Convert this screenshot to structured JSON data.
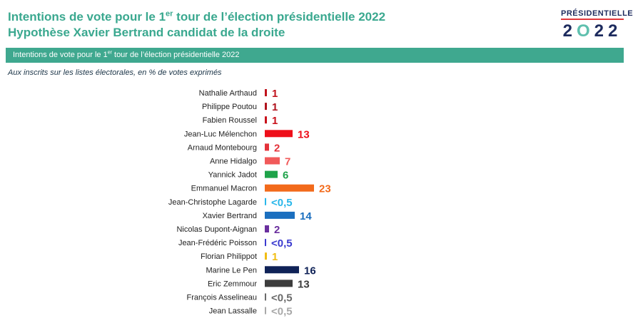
{
  "header": {
    "title_line1_pre": "Intentions de vote pour le 1",
    "title_line1_sup": "er",
    "title_line1_post": " tour de l’élection présidentielle 2022",
    "title_line2": "Hypothèse Xavier Bertrand candidat de la droite"
  },
  "logo": {
    "top_text": "PRÉSIDENTIELLE",
    "year_a": "2",
    "year_o": "O",
    "year_b": "22"
  },
  "banner": {
    "pre": "Intentions de vote pour le 1",
    "sup": "er",
    "post": " tour de l’élection présidentielle 2022"
  },
  "subtitle": "Aux inscrits sur les listes électorales, en % de votes exprimés",
  "chart_data": {
    "type": "bar",
    "orientation": "horizontal",
    "categories": [
      "Nathalie Arthaud",
      "Philippe Poutou",
      "Fabien Roussel",
      "Jean-Luc Mélenchon",
      "Arnaud Montebourg",
      "Anne Hidalgo",
      "Yannick Jadot",
      "Emmanuel Macron",
      "Jean-Christophe Lagarde",
      "Xavier Bertrand",
      "Nicolas Dupont-Aignan",
      "Jean-Frédéric Poisson",
      "Florian Philippot",
      "Marine Le Pen",
      "Eric Zemmour",
      "François Asselineau",
      "Jean Lassalle"
    ],
    "values": [
      1,
      1,
      1,
      13,
      2,
      7,
      6,
      23,
      0.3,
      14,
      2,
      0.3,
      1,
      16,
      13,
      0.3,
      0.3
    ],
    "labels": [
      "1",
      "1",
      "1",
      "13",
      "2",
      "7",
      "6",
      "23",
      "<0,5",
      "14",
      "2",
      "<0,5",
      "1",
      "16",
      "13",
      "<0,5",
      "<0,5"
    ],
    "colors": [
      "#c0121c",
      "#b0121c",
      "#c8101a",
      "#ee0f1a",
      "#e4323a",
      "#f15a5a",
      "#1fa34a",
      "#f26a1b",
      "#29b7ea",
      "#1b6fbf",
      "#6a2f9e",
      "#3b3bcf",
      "#f1bd12",
      "#0f2257",
      "#3d3d3d",
      "#6a6a6a",
      "#a8a8a8"
    ],
    "xlim": [
      0,
      25
    ]
  }
}
